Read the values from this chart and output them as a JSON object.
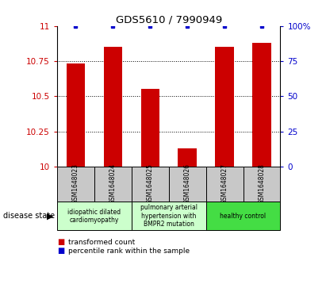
{
  "title": "GDS5610 / 7990949",
  "samples": [
    "GSM1648023",
    "GSM1648024",
    "GSM1648025",
    "GSM1648026",
    "GSM1648027",
    "GSM1648028"
  ],
  "red_values": [
    10.73,
    10.85,
    10.55,
    10.13,
    10.85,
    10.88
  ],
  "blue_values": [
    100,
    100,
    100,
    100,
    100,
    100
  ],
  "ylim_left": [
    10.0,
    11.0
  ],
  "ylim_right": [
    0,
    100
  ],
  "yticks_left": [
    10.0,
    10.25,
    10.5,
    10.75,
    11.0
  ],
  "yticks_right": [
    0,
    25,
    50,
    75,
    100
  ],
  "bar_color": "#cc0000",
  "dot_color": "#0000cc",
  "background_color": "#ffffff",
  "tick_color_left": "#cc0000",
  "tick_color_right": "#0000cc",
  "disease_state_label": "disease state",
  "legend_red": "transformed count",
  "legend_blue": "percentile rank within the sample",
  "sample_bg_color": "#c8c8c8",
  "group_data": [
    {
      "start": 0,
      "end": 1,
      "label": "idiopathic dilated\ncardiomyopathy",
      "color": "#ccffcc"
    },
    {
      "start": 2,
      "end": 3,
      "label": "pulmonary arterial\nhypertension with\nBMPR2 mutation",
      "color": "#ccffcc"
    },
    {
      "start": 4,
      "end": 5,
      "label": "healthy control",
      "color": "#44dd44"
    }
  ]
}
